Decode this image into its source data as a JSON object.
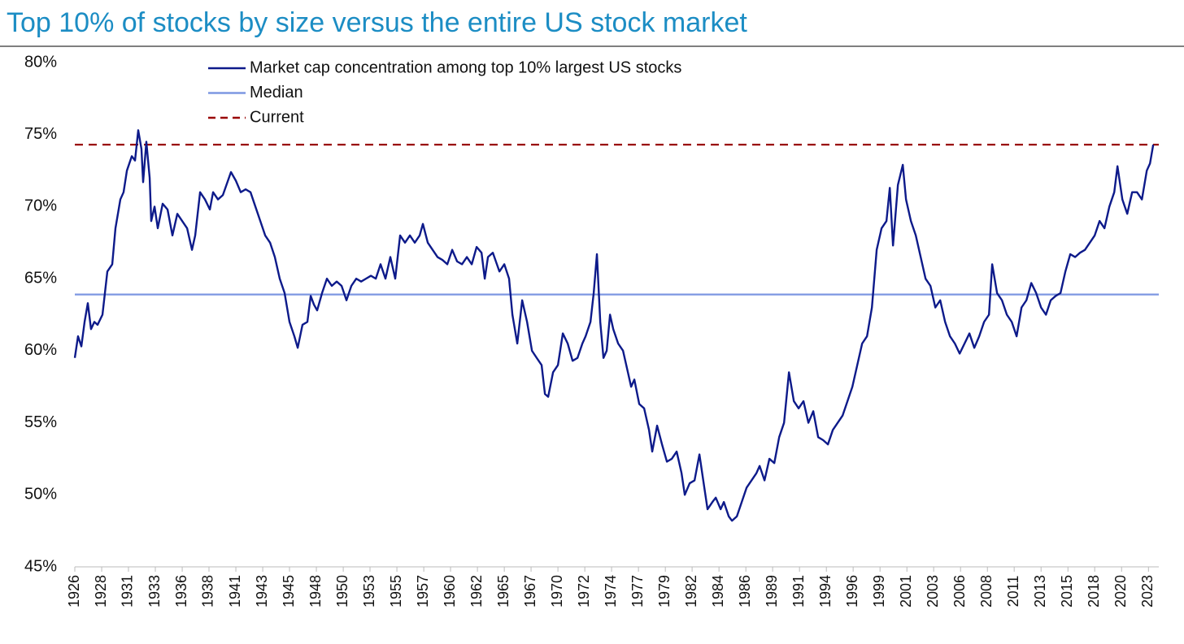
{
  "chart_data": {
    "type": "line",
    "title": "Top 10% of stocks by size versus the entire US stock market",
    "xlim": [
      1926.5,
      2024.1
    ],
    "ylim": [
      45,
      80
    ],
    "yticks": [
      {
        "value": 45,
        "label": "45%"
      },
      {
        "value": 50,
        "label": "50%"
      },
      {
        "value": 55,
        "label": "55%"
      },
      {
        "value": 60,
        "label": "60%"
      },
      {
        "value": 65,
        "label": "65%"
      },
      {
        "value": 70,
        "label": "70%"
      },
      {
        "value": 75,
        "label": "75%"
      },
      {
        "value": 80,
        "label": "80%"
      }
    ],
    "xticks": [
      {
        "value": 1926.5,
        "label": "1926"
      },
      {
        "value": 1928.92,
        "label": "1928"
      },
      {
        "value": 1931.33,
        "label": "1931"
      },
      {
        "value": 1933.75,
        "label": "1933"
      },
      {
        "value": 1936.17,
        "label": "1936"
      },
      {
        "value": 1938.58,
        "label": "1938"
      },
      {
        "value": 1941,
        "label": "1941"
      },
      {
        "value": 1943.42,
        "label": "1943"
      },
      {
        "value": 1945.83,
        "label": "1945"
      },
      {
        "value": 1948.25,
        "label": "1948"
      },
      {
        "value": 1950.67,
        "label": "1950"
      },
      {
        "value": 1953.08,
        "label": "1953"
      },
      {
        "value": 1955.5,
        "label": "1955"
      },
      {
        "value": 1957.92,
        "label": "1957"
      },
      {
        "value": 1960.33,
        "label": "1960"
      },
      {
        "value": 1962.75,
        "label": "1962"
      },
      {
        "value": 1965.17,
        "label": "1965"
      },
      {
        "value": 1967.58,
        "label": "1967"
      },
      {
        "value": 1970,
        "label": "1970"
      },
      {
        "value": 1972.42,
        "label": "1972"
      },
      {
        "value": 1974.83,
        "label": "1974"
      },
      {
        "value": 1977.25,
        "label": "1977"
      },
      {
        "value": 1979.67,
        "label": "1979"
      },
      {
        "value": 1982.08,
        "label": "1982"
      },
      {
        "value": 1984.5,
        "label": "1984"
      },
      {
        "value": 1986.92,
        "label": "1986"
      },
      {
        "value": 1989.33,
        "label": "1989"
      },
      {
        "value": 1991.75,
        "label": "1991"
      },
      {
        "value": 1994.17,
        "label": "1994"
      },
      {
        "value": 1996.58,
        "label": "1996"
      },
      {
        "value": 1999,
        "label": "1999"
      },
      {
        "value": 2001.42,
        "label": "2001"
      },
      {
        "value": 2003.83,
        "label": "2003"
      },
      {
        "value": 2006.25,
        "label": "2006"
      },
      {
        "value": 2008.67,
        "label": "2008"
      },
      {
        "value": 2011.08,
        "label": "2011"
      },
      {
        "value": 2013.5,
        "label": "2013"
      },
      {
        "value": 2015.92,
        "label": "2015"
      },
      {
        "value": 2018.33,
        "label": "2018"
      },
      {
        "value": 2020.75,
        "label": "2020"
      },
      {
        "value": 2023.17,
        "label": "2023"
      }
    ],
    "x": [
      1926.5,
      1926.79,
      1927.09,
      1927.38,
      1927.67,
      1927.96,
      1928.26,
      1928.55,
      1928.99,
      1929.43,
      1929.87,
      1930.16,
      1930.6,
      1930.89,
      1931.19,
      1931.63,
      1931.92,
      1932.21,
      1932.5,
      1932.65,
      1932.94,
      1933.24,
      1933.38,
      1933.68,
      1933.97,
      1934.41,
      1934.85,
      1935.29,
      1935.73,
      1936.17,
      1936.61,
      1937.05,
      1937.34,
      1937.78,
      1938.22,
      1938.66,
      1938.95,
      1939.39,
      1939.83,
      1940.56,
      1941.0,
      1941.44,
      1941.88,
      1942.32,
      1942.76,
      1943.2,
      1943.64,
      1944.08,
      1944.51,
      1944.95,
      1945.39,
      1945.83,
      1946.27,
      1946.57,
      1947.0,
      1947.44,
      1947.74,
      1948.03,
      1948.32,
      1948.76,
      1949.2,
      1949.64,
      1950.08,
      1950.52,
      1950.96,
      1951.4,
      1951.84,
      1952.28,
      1952.72,
      1953.16,
      1953.6,
      1954.03,
      1954.47,
      1954.91,
      1955.35,
      1955.79,
      1956.23,
      1956.67,
      1957.11,
      1957.55,
      1957.84,
      1958.28,
      1958.72,
      1959.16,
      1959.6,
      1960.04,
      1960.48,
      1960.92,
      1961.36,
      1961.8,
      1962.24,
      1962.68,
      1963.12,
      1963.41,
      1963.7,
      1964.14,
      1964.73,
      1965.17,
      1965.6,
      1965.9,
      1966.34,
      1966.78,
      1967.22,
      1967.66,
      1968.09,
      1968.53,
      1968.83,
      1969.12,
      1969.56,
      1970.0,
      1970.44,
      1970.88,
      1971.32,
      1971.76,
      1972.2,
      1972.49,
      1972.93,
      1973.22,
      1973.51,
      1973.81,
      1974.1,
      1974.39,
      1974.69,
      1974.98,
      1975.42,
      1975.86,
      1976.3,
      1976.59,
      1976.88,
      1977.32,
      1977.76,
      1978.2,
      1978.49,
      1978.93,
      1979.37,
      1979.81,
      1980.25,
      1980.69,
      1981.13,
      1981.42,
      1981.86,
      1982.3,
      1982.74,
      1983.18,
      1983.47,
      1983.91,
      1984.21,
      1984.65,
      1984.94,
      1985.38,
      1985.67,
      1986.11,
      1986.55,
      1986.99,
      1987.43,
      1987.87,
      1988.16,
      1988.6,
      1989.04,
      1989.48,
      1989.92,
      1990.36,
      1990.8,
      1991.24,
      1991.67,
      1992.11,
      1992.55,
      1992.99,
      1993.43,
      1993.87,
      1994.31,
      1994.75,
      1995.19,
      1995.63,
      1996.07,
      1996.51,
      1996.95,
      1997.39,
      1997.83,
      1998.27,
      1998.7,
      1999.14,
      1999.58,
      1999.88,
      2000.17,
      2000.61,
      2001.05,
      2001.34,
      2001.78,
      2002.22,
      2002.66,
      2003.1,
      2003.54,
      2003.98,
      2004.42,
      2004.86,
      2005.3,
      2005.74,
      2006.17,
      2006.61,
      2007.05,
      2007.49,
      2007.93,
      2008.37,
      2008.81,
      2009.1,
      2009.54,
      2009.98,
      2010.42,
      2010.86,
      2011.3,
      2011.74,
      2012.18,
      2012.62,
      2013.06,
      2013.5,
      2013.94,
      2014.37,
      2014.81,
      2015.25,
      2015.69,
      2016.13,
      2016.57,
      2017.01,
      2017.45,
      2017.89,
      2018.33,
      2018.77,
      2019.21,
      2019.65,
      2020.09,
      2020.38,
      2020.82,
      2021.26,
      2021.7,
      2022.14,
      2022.58,
      2023.02,
      2023.31,
      2023.6
    ],
    "series": [
      {
        "name": "Market cap concentration among top 10% largest US stocks",
        "color": "#0d1a8a",
        "values": [
          59.5,
          61.0,
          60.3,
          62.0,
          63.3,
          61.5,
          62.0,
          61.8,
          62.5,
          65.5,
          66.0,
          68.5,
          70.5,
          71.0,
          72.5,
          73.5,
          73.2,
          75.3,
          74.0,
          71.7,
          74.5,
          72.0,
          69.0,
          70.0,
          68.5,
          70.2,
          69.8,
          68.0,
          69.5,
          69.0,
          68.5,
          67.0,
          68.0,
          71.0,
          70.5,
          69.8,
          71.0,
          70.5,
          70.8,
          72.4,
          71.8,
          71.0,
          71.2,
          71.0,
          70.0,
          69.0,
          68.0,
          67.5,
          66.5,
          65.0,
          64.0,
          62.0,
          61.0,
          60.2,
          61.8,
          62.0,
          63.8,
          63.2,
          62.8,
          64.0,
          65.0,
          64.5,
          64.8,
          64.5,
          63.5,
          64.5,
          65.0,
          64.8,
          65.0,
          65.2,
          65.0,
          66.0,
          65.0,
          66.5,
          65.0,
          68.0,
          67.5,
          68.0,
          67.5,
          68.0,
          68.8,
          67.5,
          67.0,
          66.5,
          66.3,
          66.0,
          67.0,
          66.2,
          66.0,
          66.5,
          66.0,
          67.2,
          66.8,
          65.0,
          66.5,
          66.8,
          65.5,
          66.0,
          65.0,
          62.5,
          60.5,
          63.5,
          62.0,
          60.0,
          59.5,
          59.0,
          57.0,
          56.8,
          58.5,
          59.0,
          61.2,
          60.5,
          59.3,
          59.5,
          60.5,
          61.0,
          62.0,
          64.0,
          66.7,
          62.0,
          59.5,
          60.0,
          62.5,
          61.5,
          60.5,
          60.0,
          58.5,
          57.5,
          58.0,
          56.3,
          56.0,
          54.5,
          53.0,
          54.8,
          53.5,
          52.3,
          52.5,
          53.0,
          51.5,
          50.0,
          50.8,
          51.0,
          52.8,
          50.5,
          49.0,
          49.5,
          49.8,
          49.0,
          49.5,
          48.5,
          48.2,
          48.5,
          49.5,
          50.5,
          51.0,
          51.5,
          52.0,
          51.0,
          52.5,
          52.2,
          54.0,
          55.0,
          58.5,
          56.5,
          56.0,
          56.5,
          55.0,
          55.8,
          54.0,
          53.8,
          53.5,
          54.5,
          55.0,
          55.5,
          56.5,
          57.5,
          59.0,
          60.5,
          61.0,
          63.0,
          67.0,
          68.5,
          69.0,
          71.3,
          67.3,
          71.5,
          72.9,
          70.5,
          69.0,
          68.0,
          66.5,
          65.0,
          64.5,
          63.0,
          63.5,
          62.0,
          61.0,
          60.5,
          59.8,
          60.5,
          61.2,
          60.2,
          61.0,
          62.0,
          62.5,
          66.0,
          64.0,
          63.5,
          62.5,
          62.0,
          61.0,
          63.0,
          63.5,
          64.7,
          64.0,
          63.0,
          62.5,
          63.5,
          63.8,
          64.0,
          65.5,
          66.7,
          66.5,
          66.8,
          67.0,
          67.5,
          68.0,
          69.0,
          68.5,
          70.0,
          71.0,
          72.8,
          70.5,
          69.5,
          71.0,
          71.0,
          70.5,
          72.5,
          73.0,
          74.3
        ]
      }
    ],
    "reference_lines": [
      {
        "name": "Median",
        "value": 63.9,
        "color": "#7d97e2",
        "dash": false
      },
      {
        "name": "Current",
        "value": 74.3,
        "color": "#990000",
        "dash": true
      }
    ]
  }
}
